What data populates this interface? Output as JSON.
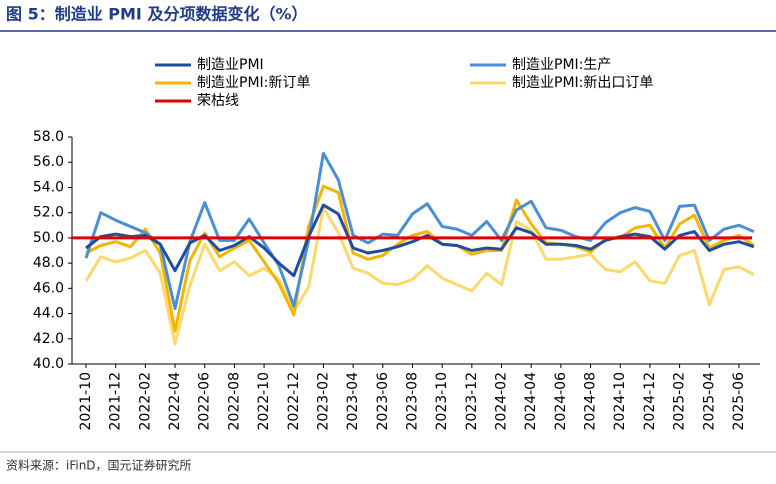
{
  "chart_data": {
    "type": "line",
    "title": "图 5：制造业 PMI 及分项数据变化（%）",
    "source": "资料来源：iFinD，国元证券研究所",
    "categories": [
      "2021-10",
      null,
      "2021-12",
      null,
      "2022-02",
      null,
      "2022-04",
      null,
      "2022-06",
      null,
      "2022-08",
      null,
      "2022-10",
      null,
      "2022-12",
      null,
      "2023-02",
      null,
      "2023-04",
      null,
      "2023-06",
      null,
      "2023-08",
      null,
      "2023-10",
      null,
      "2023-12",
      null,
      "2024-02",
      null,
      "2024-04",
      null,
      "2024-06",
      null,
      "2024-08",
      null,
      "2024-10",
      null,
      "2024-12",
      null,
      "2025-02",
      null,
      "2025-04",
      null,
      "2025-06",
      null
    ],
    "series": [
      {
        "name": "制造业PMI",
        "color": "#1f4e9c",
        "values": [
          49.2,
          50.1,
          50.3,
          50.1,
          50.2,
          49.5,
          47.4,
          49.6,
          50.2,
          49.0,
          49.4,
          50.1,
          49.2,
          48.0,
          47.0,
          50.1,
          52.6,
          51.9,
          49.2,
          48.8,
          49.0,
          49.3,
          49.7,
          50.2,
          49.5,
          49.4,
          49.0,
          49.2,
          49.1,
          50.8,
          50.4,
          49.5,
          49.5,
          49.4,
          49.1,
          49.8,
          50.1,
          50.3,
          50.1,
          49.1,
          50.2,
          50.5,
          49.0,
          49.5,
          49.7,
          49.3
        ]
      },
      {
        "name": "制造业PMI:生产",
        "color": "#4a8fd6",
        "values": [
          48.4,
          52.0,
          51.4,
          50.9,
          50.4,
          49.5,
          44.4,
          49.7,
          52.8,
          49.8,
          49.8,
          51.5,
          49.6,
          47.8,
          44.6,
          49.8,
          56.7,
          54.6,
          50.2,
          49.6,
          50.3,
          50.2,
          51.9,
          52.7,
          50.9,
          50.7,
          50.2,
          51.3,
          49.8,
          52.2,
          52.9,
          50.8,
          50.6,
          50.1,
          49.8,
          51.2,
          52.0,
          52.4,
          52.1,
          49.8,
          52.5,
          52.6,
          49.8,
          50.7,
          51.0,
          50.5
        ]
      },
      {
        "name": "制造业PMI:新订单",
        "color": "#f5b400",
        "values": [
          48.8,
          49.4,
          49.7,
          49.3,
          50.7,
          48.8,
          42.6,
          48.2,
          50.4,
          48.5,
          49.2,
          49.8,
          48.1,
          46.4,
          43.9,
          50.9,
          54.1,
          53.6,
          48.8,
          48.3,
          48.6,
          49.5,
          50.2,
          50.5,
          49.5,
          49.4,
          48.7,
          49.0,
          49.0,
          53.0,
          51.1,
          49.6,
          49.5,
          49.3,
          48.9,
          49.9,
          50.0,
          50.8,
          51.0,
          49.2,
          51.1,
          51.8,
          49.2,
          49.8,
          50.2,
          49.4
        ]
      },
      {
        "name": "制造业PMI:新出口订单",
        "color": "#fcd96a",
        "values": [
          46.6,
          48.5,
          48.1,
          48.4,
          49.0,
          47.2,
          41.6,
          46.2,
          49.5,
          47.4,
          48.1,
          47.0,
          47.6,
          46.7,
          44.2,
          46.1,
          52.4,
          50.4,
          47.6,
          47.2,
          46.4,
          46.3,
          46.7,
          47.8,
          46.8,
          46.3,
          45.8,
          47.2,
          46.3,
          51.3,
          50.6,
          48.3,
          48.3,
          48.5,
          48.7,
          47.5,
          47.3,
          48.1,
          46.6,
          46.4,
          48.6,
          49.0,
          44.7,
          47.5,
          47.7,
          47.1
        ]
      }
    ],
    "reference": {
      "name": "荣枯线",
      "value": 50,
      "color": "#e00000"
    },
    "ylim": [
      40,
      58
    ],
    "yticks": [
      {
        "value": 40,
        "label": "40.0"
      },
      {
        "value": 42,
        "label": "42.0"
      },
      {
        "value": 44,
        "label": "44.0"
      },
      {
        "value": 46,
        "label": "46.0"
      },
      {
        "value": 48,
        "label": "48.0"
      },
      {
        "value": 50,
        "label": "50.0"
      },
      {
        "value": 52,
        "label": "52.0"
      },
      {
        "value": 54,
        "label": "54.0"
      },
      {
        "value": 56,
        "label": "56.0"
      },
      {
        "value": 58,
        "label": "58.0"
      }
    ]
  }
}
